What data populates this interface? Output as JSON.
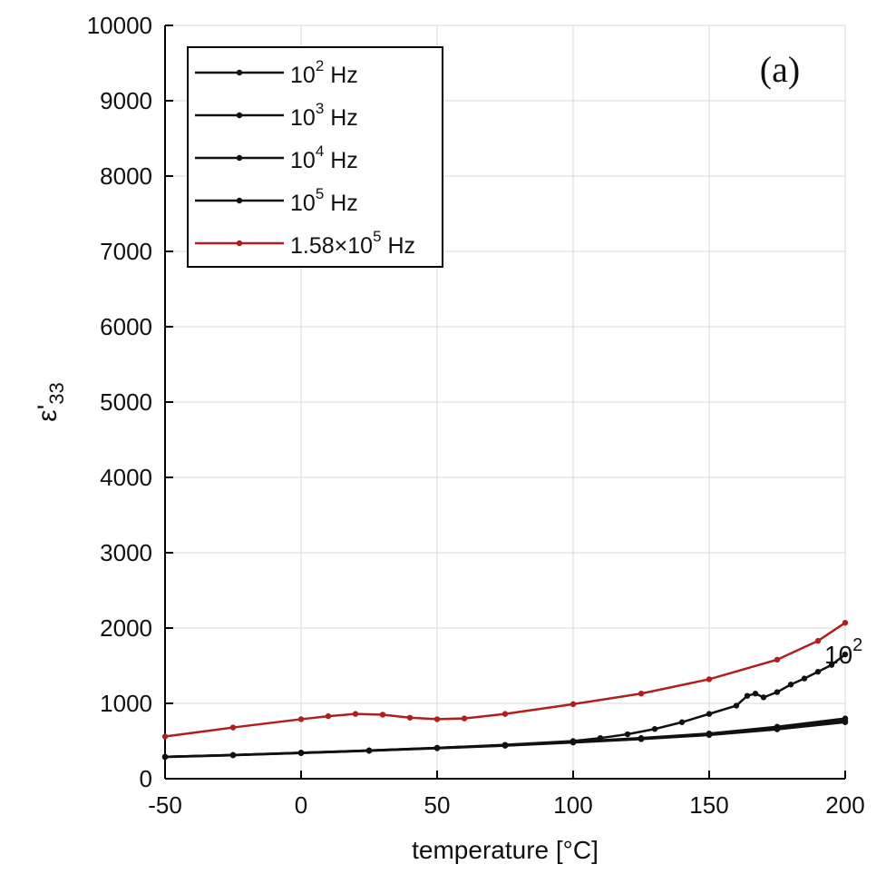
{
  "chart_data": {
    "type": "line",
    "title": "",
    "xlabel": "temperature [°C]",
    "ylabel": "ε'33",
    "ylabel_main": "ε'",
    "ylabel_sub": "33",
    "xlim": [
      -50,
      200
    ],
    "ylim": [
      0,
      10000
    ],
    "x_ticks": [
      -50,
      0,
      50,
      100,
      150,
      200
    ],
    "y_ticks": [
      0,
      1000,
      2000,
      3000,
      4000,
      5000,
      6000,
      7000,
      8000,
      9000,
      10000
    ],
    "grid": true,
    "legend_position": "top-left",
    "panel_label": "(a)",
    "annotation": {
      "base": "10",
      "exp": "2",
      "x": 197,
      "y": 1650
    },
    "series": [
      {
        "name": "10^2 Hz",
        "legend_base": "10",
        "legend_exp": "2",
        "legend_suffix": " Hz",
        "color": "#111111",
        "x": [
          -50,
          -25,
          0,
          25,
          50,
          75,
          100,
          110,
          120,
          130,
          140,
          150,
          160,
          164,
          167,
          170,
          175,
          180,
          185,
          190,
          195,
          200
        ],
        "y": [
          290,
          315,
          345,
          375,
          410,
          450,
          500,
          540,
          590,
          660,
          750,
          860,
          970,
          1100,
          1130,
          1080,
          1150,
          1250,
          1330,
          1420,
          1510,
          1650
        ]
      },
      {
        "name": "10^3 Hz",
        "legend_base": "10",
        "legend_exp": "3",
        "legend_suffix": " Hz",
        "color": "#111111",
        "x": [
          -50,
          -25,
          0,
          25,
          50,
          75,
          100,
          125,
          150,
          175,
          200
        ],
        "y": [
          290,
          315,
          345,
          375,
          410,
          445,
          490,
          540,
          600,
          690,
          800
        ]
      },
      {
        "name": "10^4 Hz",
        "legend_base": "10",
        "legend_exp": "4",
        "legend_suffix": " Hz",
        "color": "#111111",
        "x": [
          -50,
          -25,
          0,
          25,
          50,
          75,
          100,
          125,
          150,
          175,
          200
        ],
        "y": [
          290,
          313,
          342,
          372,
          407,
          442,
          485,
          532,
          590,
          670,
          770
        ]
      },
      {
        "name": "10^5 Hz",
        "legend_base": "10",
        "legend_exp": "5",
        "legend_suffix": " Hz",
        "color": "#111111",
        "x": [
          -50,
          -25,
          0,
          25,
          50,
          75,
          100,
          125,
          150,
          175,
          200
        ],
        "y": [
          288,
          311,
          340,
          370,
          404,
          438,
          480,
          525,
          580,
          655,
          750
        ]
      },
      {
        "name": "1.58×10^5 Hz",
        "legend_base": "1.58×10",
        "legend_exp": "5",
        "legend_suffix": " Hz",
        "color": "#b01e1e",
        "x": [
          -50,
          -25,
          0,
          10,
          20,
          30,
          40,
          50,
          60,
          75,
          100,
          125,
          150,
          175,
          190,
          200
        ],
        "y": [
          560,
          680,
          790,
          830,
          860,
          850,
          810,
          790,
          800,
          860,
          990,
          1130,
          1320,
          1580,
          1830,
          2070
        ]
      }
    ]
  }
}
